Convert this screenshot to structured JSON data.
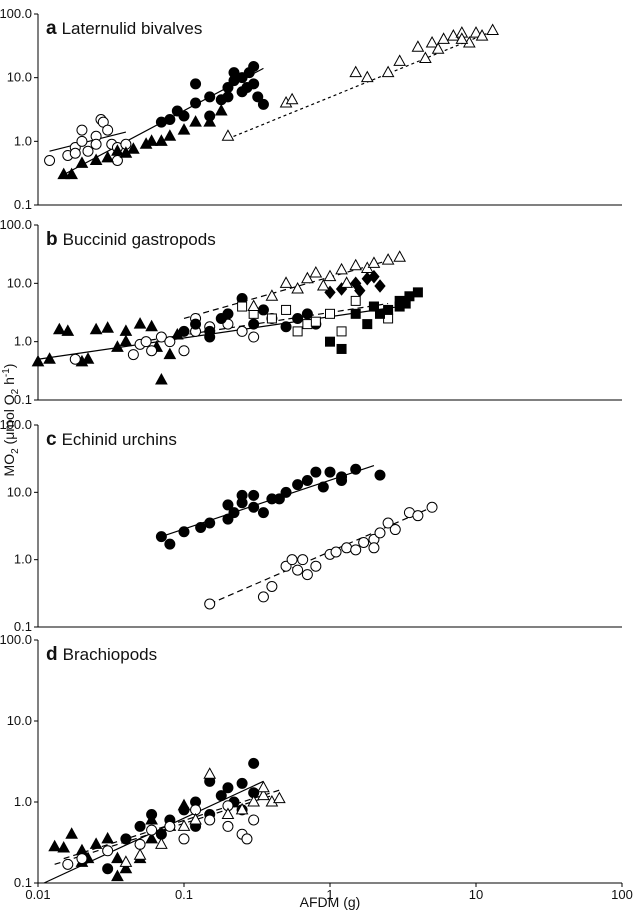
{
  "y_label": [
    "MO",
    "2",
    " (μmol O",
    "2",
    " h",
    "-1",
    ")"
  ],
  "chart_data": [
    {
      "type": "scatter",
      "label": "a",
      "title": "Laternulid bivalves",
      "log_x": true,
      "log_y": true,
      "xlim": [
        0.01,
        100
      ],
      "ylim": [
        0.1,
        100
      ],
      "yticks": [
        {
          "value": 0.1,
          "label": "0.1"
        },
        {
          "value": 1,
          "label": "1.0"
        },
        {
          "value": 10,
          "label": "10.0"
        },
        {
          "value": 100,
          "label": "100.0"
        }
      ],
      "series": [
        {
          "marker": "circle",
          "filled": false,
          "x": [
            0.012,
            0.016,
            0.018,
            0.02,
            0.02,
            0.022,
            0.025,
            0.027,
            0.028,
            0.03,
            0.032,
            0.035,
            0.035,
            0.04,
            0.018,
            0.025
          ],
          "y": [
            0.5,
            0.6,
            0.8,
            1.0,
            1.5,
            0.7,
            1.2,
            2.2,
            2.0,
            1.5,
            0.9,
            0.5,
            0.8,
            0.9,
            0.65,
            0.9
          ],
          "fit_x": [
            0.012,
            0.04
          ],
          "fit_y": [
            0.7,
            1.4
          ],
          "fit_style": "solid"
        },
        {
          "marker": "triangle",
          "filled": true,
          "x": [
            0.015,
            0.017,
            0.02,
            0.025,
            0.03,
            0.035,
            0.04,
            0.045,
            0.055,
            0.06,
            0.07,
            0.08,
            0.1,
            0.12,
            0.15,
            0.18
          ],
          "y": [
            0.3,
            0.3,
            0.45,
            0.5,
            0.55,
            0.7,
            0.65,
            0.75,
            0.9,
            1.0,
            1.0,
            1.2,
            1.5,
            2.0,
            2.0,
            3.0
          ]
        },
        {
          "marker": "circle",
          "filled": true,
          "x": [
            0.07,
            0.08,
            0.09,
            0.1,
            0.12,
            0.12,
            0.15,
            0.15,
            0.18,
            0.2,
            0.2,
            0.22,
            0.25,
            0.25,
            0.28,
            0.3,
            0.3,
            0.32,
            0.35,
            0.22,
            0.27
          ],
          "y": [
            2.0,
            2.2,
            3.0,
            2.5,
            8,
            4,
            5,
            2.5,
            4.5,
            5,
            7,
            9,
            10,
            6,
            12,
            15,
            8,
            5,
            3.8,
            12,
            7
          ],
          "fit_x": [
            0.015,
            0.35
          ],
          "fit_y": [
            0.3,
            14
          ],
          "fit_style": "solid"
        },
        {
          "marker": "triangle",
          "filled": false,
          "x": [
            0.2,
            0.5,
            0.55,
            1.5,
            1.8,
            2.5,
            3,
            4,
            4.5,
            5,
            5.5,
            6,
            7,
            8,
            9,
            10,
            11,
            13,
            8
          ],
          "y": [
            1.2,
            4,
            4.5,
            12,
            10,
            12,
            18,
            30,
            20,
            35,
            28,
            40,
            45,
            50,
            35,
            50,
            45,
            55,
            40
          ],
          "fit_x": [
            0.2,
            12
          ],
          "fit_y": [
            1.1,
            50
          ],
          "fit_style": "dotted"
        }
      ]
    },
    {
      "type": "scatter",
      "label": "b",
      "title": "Buccinid gastropods",
      "log_x": true,
      "log_y": true,
      "xlim": [
        0.01,
        100
      ],
      "ylim": [
        0.1,
        100
      ],
      "yticks": [
        {
          "value": 0.1,
          "label": "0.1"
        },
        {
          "value": 1,
          "label": "1.0"
        },
        {
          "value": 10,
          "label": "10.0"
        },
        {
          "value": 100,
          "label": "100.0"
        }
      ],
      "series": [
        {
          "marker": "triangle",
          "filled": true,
          "x": [
            0.01,
            0.012,
            0.014,
            0.016,
            0.02,
            0.022,
            0.025,
            0.03,
            0.035,
            0.04,
            0.04,
            0.05,
            0.06,
            0.065,
            0.07,
            0.08,
            0.09
          ],
          "y": [
            0.45,
            0.5,
            1.6,
            1.5,
            0.45,
            0.5,
            1.6,
            1.7,
            0.8,
            1.0,
            1.5,
            2.0,
            1.8,
            0.8,
            0.22,
            0.6,
            1.3
          ],
          "fit_x": [
            0.01,
            3
          ],
          "fit_y": [
            0.5,
            4
          ],
          "fit_style": "solid"
        },
        {
          "marker": "circle",
          "filled": false,
          "x": [
            0.018,
            0.045,
            0.05,
            0.055,
            0.06,
            0.07,
            0.08,
            0.1,
            0.12,
            0.12,
            0.15,
            0.2,
            0.25,
            0.3
          ],
          "y": [
            0.5,
            0.6,
            0.9,
            1.0,
            0.7,
            1.2,
            1.0,
            0.7,
            1.5,
            2.5,
            1.8,
            2.0,
            1.5,
            1.2
          ]
        },
        {
          "marker": "circle",
          "filled": true,
          "x": [
            0.1,
            0.12,
            0.15,
            0.18,
            0.2,
            0.25,
            0.3,
            0.35,
            0.4,
            0.5,
            0.6,
            0.7,
            0.8,
            0.15
          ],
          "y": [
            1.5,
            2.0,
            1.5,
            2.5,
            3.0,
            5.5,
            2.0,
            3.5,
            2.5,
            1.8,
            2.5,
            3.0,
            2.0,
            1.2
          ]
        },
        {
          "marker": "square",
          "filled": false,
          "x": [
            0.25,
            0.3,
            0.4,
            0.5,
            0.6,
            0.7,
            0.8,
            1,
            1.2,
            1.5,
            2,
            2.5
          ],
          "y": [
            4.0,
            3.0,
            2.5,
            3.5,
            1.5,
            2.0,
            2.2,
            3.0,
            1.5,
            5.0,
            4.0,
            2.5
          ],
          "fit_x": [
            0.05,
            2.5
          ],
          "fit_y": [
            1.0,
            4.5
          ],
          "fit_style": "dashed"
        },
        {
          "marker": "square",
          "filled": true,
          "x": [
            1,
            1.2,
            1.5,
            1.8,
            2,
            2.2,
            2.5,
            3,
            3,
            3.5,
            4,
            3.3
          ],
          "y": [
            1.0,
            0.75,
            3.0,
            2.0,
            4.0,
            3.0,
            3.5,
            5.0,
            4.0,
            6.0,
            7.0,
            4.5
          ]
        },
        {
          "marker": "diamond",
          "filled": true,
          "x": [
            1.0,
            1.2,
            1.5,
            1.8,
            2,
            2.2,
            1.6
          ],
          "y": [
            7,
            8,
            10,
            12,
            13,
            9,
            7.5
          ]
        },
        {
          "marker": "triangle",
          "filled": false,
          "x": [
            0.3,
            0.4,
            0.5,
            0.6,
            0.7,
            0.8,
            1,
            1.2,
            1.5,
            1.8,
            2,
            2.5,
            3,
            0.9,
            1.3
          ],
          "y": [
            4,
            6,
            10,
            8,
            12,
            15,
            13,
            17,
            20,
            18,
            22,
            25,
            28,
            9,
            10
          ],
          "fit_x": [
            0.1,
            3
          ],
          "fit_y": [
            2.5,
            28
          ],
          "fit_style": "dashed"
        }
      ]
    },
    {
      "type": "scatter",
      "label": "c",
      "title": "Echinid urchins",
      "log_x": true,
      "log_y": true,
      "xlim": [
        0.01,
        100
      ],
      "ylim": [
        0.1,
        100
      ],
      "yticks": [
        {
          "value": 0.1,
          "label": "0.1"
        },
        {
          "value": 1,
          "label": "1.0"
        },
        {
          "value": 10,
          "label": "10.0"
        },
        {
          "value": 100,
          "label": "100.0"
        }
      ],
      "series": [
        {
          "marker": "circle",
          "filled": true,
          "x": [
            0.07,
            0.08,
            0.1,
            0.13,
            0.15,
            0.2,
            0.2,
            0.22,
            0.25,
            0.25,
            0.3,
            0.3,
            0.35,
            0.4,
            0.45,
            0.5,
            0.6,
            0.7,
            0.8,
            0.9,
            1.0,
            1.2,
            1.5,
            2.2,
            1.2
          ],
          "y": [
            2.2,
            1.7,
            2.6,
            3.0,
            3.5,
            4.0,
            6.5,
            5,
            7,
            9,
            9,
            6,
            5,
            8,
            8,
            10,
            13,
            15,
            20,
            12,
            20,
            15,
            22,
            18,
            17
          ],
          "fit_x": [
            0.07,
            2
          ],
          "fit_y": [
            2.2,
            25
          ],
          "fit_style": "solid"
        },
        {
          "marker": "circle",
          "filled": false,
          "x": [
            0.15,
            0.35,
            0.4,
            0.5,
            0.55,
            0.6,
            0.65,
            0.7,
            0.8,
            1.0,
            1.1,
            1.3,
            1.5,
            1.7,
            2,
            2.2,
            2.5,
            2.8,
            3.5,
            4,
            5,
            2
          ],
          "y": [
            0.22,
            0.28,
            0.4,
            0.8,
            1.0,
            0.7,
            1.0,
            0.6,
            0.8,
            1.2,
            1.3,
            1.5,
            1.4,
            1.8,
            2.0,
            2.5,
            3.5,
            2.8,
            5.0,
            4.5,
            6.0,
            1.5
          ],
          "fit_x": [
            0.15,
            5
          ],
          "fit_y": [
            0.22,
            6
          ],
          "fit_style": "dashed"
        }
      ]
    },
    {
      "type": "scatter",
      "label": "d",
      "title": "Brachiopods",
      "log_x": true,
      "log_y": true,
      "xlim": [
        0.01,
        100
      ],
      "ylim": [
        0.1,
        100
      ],
      "xticks": [
        0.01,
        0.1,
        1,
        10,
        100
      ],
      "x_label": "AFDM (g)",
      "yticks": [
        {
          "value": 0.1,
          "label": "0.1"
        },
        {
          "value": 1,
          "label": "1.0"
        },
        {
          "value": 10,
          "label": "10.0"
        },
        {
          "value": 100,
          "label": "100.0"
        }
      ],
      "series": [
        {
          "marker": "triangle",
          "filled": true,
          "x": [
            0.013,
            0.015,
            0.017,
            0.02,
            0.022,
            0.025,
            0.03,
            0.035,
            0.035,
            0.04,
            0.05,
            0.06,
            0.06,
            0.08,
            0.1,
            0.02
          ],
          "y": [
            0.28,
            0.27,
            0.4,
            0.25,
            0.2,
            0.3,
            0.35,
            0.2,
            0.12,
            0.15,
            0.2,
            0.35,
            0.6,
            0.5,
            0.9,
            0.18
          ],
          "fit_x": [
            0.011,
            0.35
          ],
          "fit_y": [
            0.1,
            1.8
          ],
          "fit_style": "solid"
        },
        {
          "marker": "circle",
          "filled": true,
          "x": [
            0.03,
            0.04,
            0.05,
            0.06,
            0.07,
            0.08,
            0.1,
            0.12,
            0.12,
            0.15,
            0.15,
            0.18,
            0.2,
            0.25,
            0.25,
            0.3,
            0.3,
            0.22
          ],
          "y": [
            0.15,
            0.35,
            0.5,
            0.7,
            0.4,
            0.6,
            0.8,
            1.0,
            0.5,
            1.8,
            0.7,
            1.2,
            1.5,
            1.7,
            0.8,
            3.0,
            1.3,
            1.0
          ],
          "fit_x": [
            0.015,
            0.45
          ],
          "fit_y": [
            0.2,
            1.4
          ],
          "fit_style": "dashed"
        },
        {
          "marker": "circle",
          "filled": false,
          "x": [
            0.016,
            0.02,
            0.03,
            0.05,
            0.06,
            0.08,
            0.1,
            0.12,
            0.15,
            0.2,
            0.25,
            0.27,
            0.3,
            0.2
          ],
          "y": [
            0.17,
            0.2,
            0.25,
            0.3,
            0.45,
            0.5,
            0.35,
            0.8,
            0.6,
            0.9,
            0.4,
            0.35,
            0.6,
            0.5
          ],
          "fit_x": [
            0.013,
            0.4
          ],
          "fit_y": [
            0.17,
            1.2
          ],
          "fit_style": "dashed"
        },
        {
          "marker": "triangle",
          "filled": false,
          "x": [
            0.04,
            0.05,
            0.07,
            0.1,
            0.12,
            0.15,
            0.2,
            0.25,
            0.3,
            0.35,
            0.4,
            0.45,
            0.35
          ],
          "y": [
            0.18,
            0.22,
            0.3,
            0.5,
            0.6,
            2.2,
            0.7,
            0.8,
            1.0,
            1.2,
            1.0,
            1.1,
            1.5
          ]
        }
      ]
    }
  ]
}
